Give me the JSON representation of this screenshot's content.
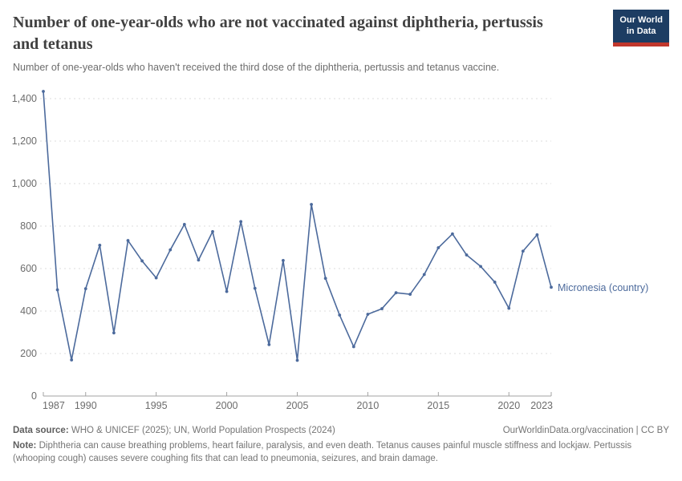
{
  "header": {
    "title": "Number of one-year-olds who are not vaccinated against diphtheria, pertussis and tetanus",
    "subtitle": "Number of one-year-olds who haven't received the third dose of the diphtheria, pertussis and tetanus vaccine.",
    "logo": {
      "line1": "Our World",
      "line2": "in Data"
    }
  },
  "chart_data": {
    "type": "line",
    "title": "Number of one-year-olds who are not vaccinated against diphtheria, pertussis and tetanus",
    "xlabel": "",
    "ylabel": "",
    "xlim": [
      1987,
      2023
    ],
    "ylim": [
      0,
      1440
    ],
    "grid": "dashed-horizontal",
    "legend_position": "end-of-line",
    "x_ticks": [
      1987,
      1990,
      1995,
      2000,
      2005,
      2010,
      2015,
      2020,
      2023
    ],
    "y_ticks": [
      0,
      200,
      400,
      600,
      800,
      1000,
      1200,
      1400
    ],
    "y_tick_labels": [
      "0",
      "200",
      "400",
      "600",
      "800",
      "1,000",
      "1,200",
      "1,400"
    ],
    "series": [
      {
        "name": "Micronesia (country)",
        "color": "#4C6A9C",
        "x": [
          1987,
          1988,
          1989,
          1990,
          1991,
          1992,
          1993,
          1994,
          1995,
          1996,
          1997,
          1998,
          1999,
          2000,
          2001,
          2002,
          2003,
          2004,
          2005,
          2006,
          2007,
          2008,
          2009,
          2010,
          2011,
          2012,
          2013,
          2014,
          2015,
          2016,
          2017,
          2018,
          2019,
          2020,
          2021,
          2022,
          2023
        ],
        "values": [
          1434,
          500,
          170,
          505,
          710,
          297,
          732,
          636,
          556,
          688,
          808,
          640,
          774,
          492,
          821,
          507,
          242,
          638,
          168,
          902,
          554,
          381,
          232,
          385,
          411,
          486,
          479,
          572,
          698,
          763,
          664,
          610,
          536,
          413,
          682,
          759,
          512
        ]
      }
    ]
  },
  "footer": {
    "datasource_label": "Data source:",
    "datasource_text": " WHO & UNICEF (2025); UN, World Population Prospects (2024)",
    "attribution": "OurWorldinData.org/vaccination | CC BY",
    "note_label": "Note:",
    "note_text": " Diphtheria can cause breathing problems, heart failure, paralysis, and even death. Tetanus causes painful muscle stiffness and lockjaw. Pertussis (whooping cough) causes severe coughing fits that can lead to pneumonia, seizures, and brain damage."
  },
  "colors": {
    "line": "#4C6A9C",
    "logo_navy": "#1d3d63",
    "logo_red": "#c1372c",
    "grid": "#dcdcdc",
    "axis": "#a3a3a3",
    "tick_label": "#6c6c6c",
    "title_text": "#404040",
    "muted_text": "#757575"
  }
}
